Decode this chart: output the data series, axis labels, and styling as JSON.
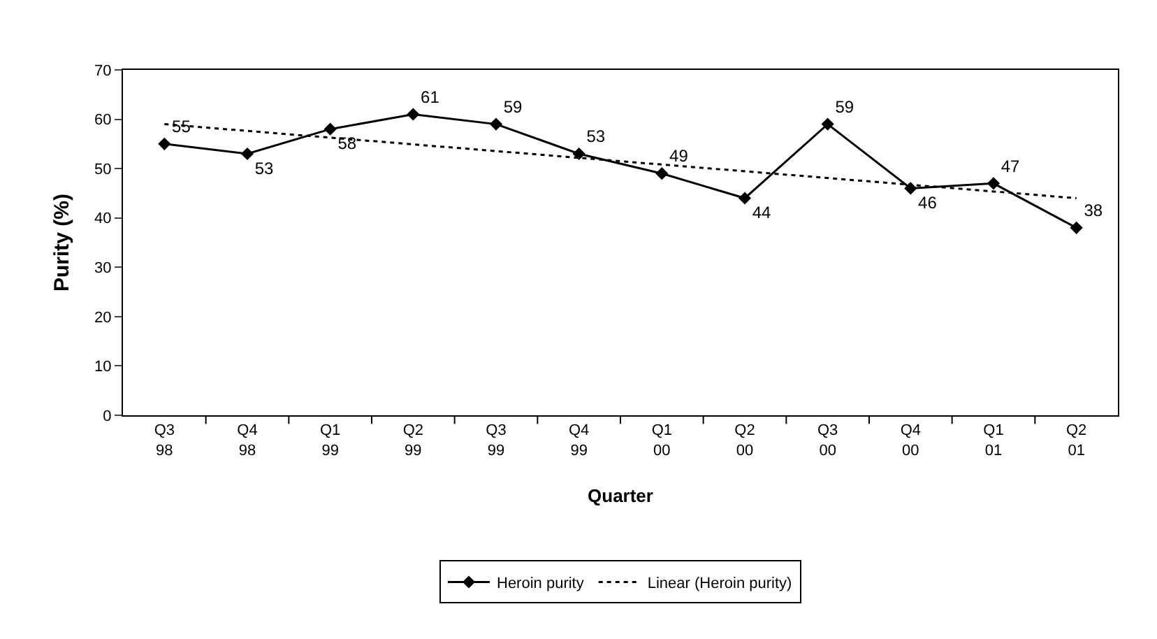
{
  "chart_data": {
    "type": "line",
    "ylabel": "Purity (%)",
    "xlabel": "Quarter",
    "categories": [
      "Q3 98",
      "Q4 98",
      "Q1 99",
      "Q2 99",
      "Q3 99",
      "Q4 99",
      "Q1 00",
      "Q2 00",
      "Q3 00",
      "Q4 00",
      "Q1 01",
      "Q2 01"
    ],
    "series": [
      {
        "name": "Heroin purity",
        "color": "#000000",
        "marker": "diamond",
        "line_style": "solid",
        "values": [
          55,
          53,
          58,
          61,
          59,
          53,
          49,
          44,
          59,
          46,
          47,
          38
        ],
        "value_labels": [
          "55",
          "53",
          "58",
          "61",
          "59",
          "53",
          "49",
          "44",
          "59",
          "46",
          "47",
          "38"
        ]
      },
      {
        "name": "Linear (Heroin purity)",
        "color": "#000000",
        "marker": "none",
        "line_style": "dotted",
        "x": [
          "Q3 98",
          "Q2 01"
        ],
        "values": [
          59,
          44
        ]
      }
    ],
    "ylim": [
      0,
      70
    ],
    "yticks": [
      0,
      10,
      20,
      30,
      40,
      50,
      60,
      70
    ],
    "grid": false,
    "legend": "bottom"
  }
}
